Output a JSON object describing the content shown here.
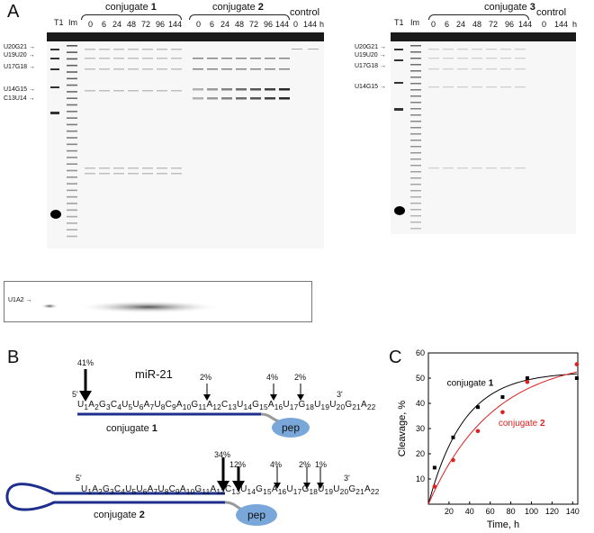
{
  "panels": {
    "A": "A",
    "B": "B",
    "C": "C"
  },
  "gel1": {
    "lanes": [
      "T1",
      "Im",
      "0",
      "6",
      "24",
      "48",
      "72",
      "96",
      "144",
      "0",
      "6",
      "24",
      "48",
      "72",
      "96",
      "144",
      "0",
      "144",
      "h"
    ],
    "conjugate1_label": "conjugate",
    "conjugate1_num": "1",
    "conjugate2_label": "conjugate",
    "conjugate2_num": "2",
    "control_label": "control",
    "band_labels": [
      "U20G21",
      "U19U20",
      "U17G18",
      "U14G15",
      "C13U14"
    ],
    "inset_label": "U1A2"
  },
  "gel2": {
    "lanes": [
      "T1",
      "Im",
      "0",
      "6",
      "24",
      "48",
      "72",
      "96",
      "144",
      "0",
      "144",
      "h"
    ],
    "conjugate3_label": "conjugate",
    "conjugate3_num": "3",
    "control_label": "control",
    "band_labels": [
      "U20G21",
      "U19U20",
      "U17G18",
      "U14G15"
    ]
  },
  "panelB": {
    "mir_label": "miR-21",
    "five": "5'",
    "three": "3'",
    "pep": "pep",
    "conj1_label": "conjugate",
    "conj1_num": "1",
    "conj2_label": "conjugate",
    "conj2_num": "2",
    "row1_pcts": [
      "41%",
      "2%",
      "4%",
      "2%"
    ],
    "row2_pcts": [
      "34%",
      "12%",
      "4%",
      "2%",
      "1%"
    ]
  },
  "chart_data": {
    "type": "scatter",
    "xlabel": "Time, h",
    "ylabel": "Cleavage, %",
    "xlim": [
      0,
      145
    ],
    "ylim": [
      0,
      60
    ],
    "xticks": [
      20,
      40,
      60,
      80,
      100,
      120,
      140
    ],
    "yticks": [
      10,
      20,
      30,
      40,
      50,
      60
    ],
    "series": [
      {
        "name": "conjugate 1",
        "color": "#000000",
        "x": [
          6,
          24,
          48,
          72,
          96,
          144
        ],
        "y": [
          14.5,
          26.5,
          38.5,
          42.5,
          50,
          50
        ]
      },
      {
        "name": "conjugate 2",
        "color": "#e02020",
        "x": [
          6,
          24,
          48,
          72,
          96,
          144
        ],
        "y": [
          7,
          17.5,
          29,
          36.5,
          48.5,
          55.5
        ]
      }
    ],
    "legend": [
      {
        "text": "conjugate",
        "num": "1",
        "color": "#000000"
      },
      {
        "text": "conjugate",
        "num": "2",
        "color": "#e02020"
      }
    ]
  }
}
